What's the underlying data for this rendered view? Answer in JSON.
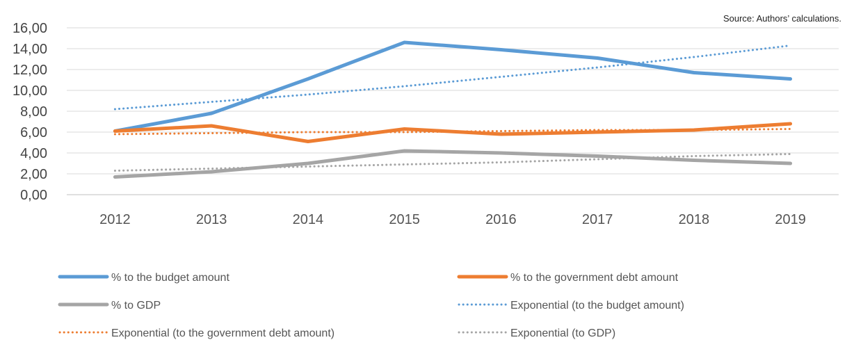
{
  "source_note": "Source: Authors’ calculations.",
  "chart_data": {
    "type": "line",
    "title": "",
    "xlabel": "",
    "ylabel": "",
    "categories": [
      "2012",
      "2013",
      "2014",
      "2015",
      "2016",
      "2017",
      "2018",
      "2019"
    ],
    "ylim": [
      0,
      16
    ],
    "yticks": [
      "0,00",
      "2,00",
      "4,00",
      "6,00",
      "8,00",
      "10,00",
      "12,00",
      "14,00",
      "16,00"
    ],
    "grid": true,
    "legend_position": "bottom",
    "series": [
      {
        "name": "% to the budget amount",
        "color": "#5B9BD5",
        "style": "solid",
        "values": [
          6.1,
          7.8,
          11.1,
          14.6,
          13.9,
          13.1,
          11.7,
          11.1
        ]
      },
      {
        "name": "% to the government debt amount",
        "color": "#ED7D31",
        "style": "solid",
        "values": [
          6.1,
          6.6,
          5.1,
          6.3,
          5.8,
          6.0,
          6.2,
          6.8
        ]
      },
      {
        "name": "% to GDP",
        "color": "#A5A5A5",
        "style": "solid",
        "values": [
          1.7,
          2.2,
          3.0,
          4.2,
          4.0,
          3.7,
          3.3,
          3.0
        ]
      },
      {
        "name": "Exponential (to the budget amount)",
        "color": "#5B9BD5",
        "style": "dotted",
        "values": [
          8.2,
          8.9,
          9.6,
          10.4,
          11.3,
          12.2,
          13.2,
          14.3
        ]
      },
      {
        "name": "Exponential (to the government debt amount)",
        "color": "#ED7D31",
        "style": "dotted",
        "values": [
          5.8,
          5.9,
          6.0,
          6.0,
          6.1,
          6.2,
          6.2,
          6.3
        ]
      },
      {
        "name": "Exponential (to GDP)",
        "color": "#A5A5A5",
        "style": "dotted",
        "values": [
          2.3,
          2.5,
          2.7,
          2.9,
          3.1,
          3.4,
          3.7,
          3.9
        ]
      }
    ]
  }
}
